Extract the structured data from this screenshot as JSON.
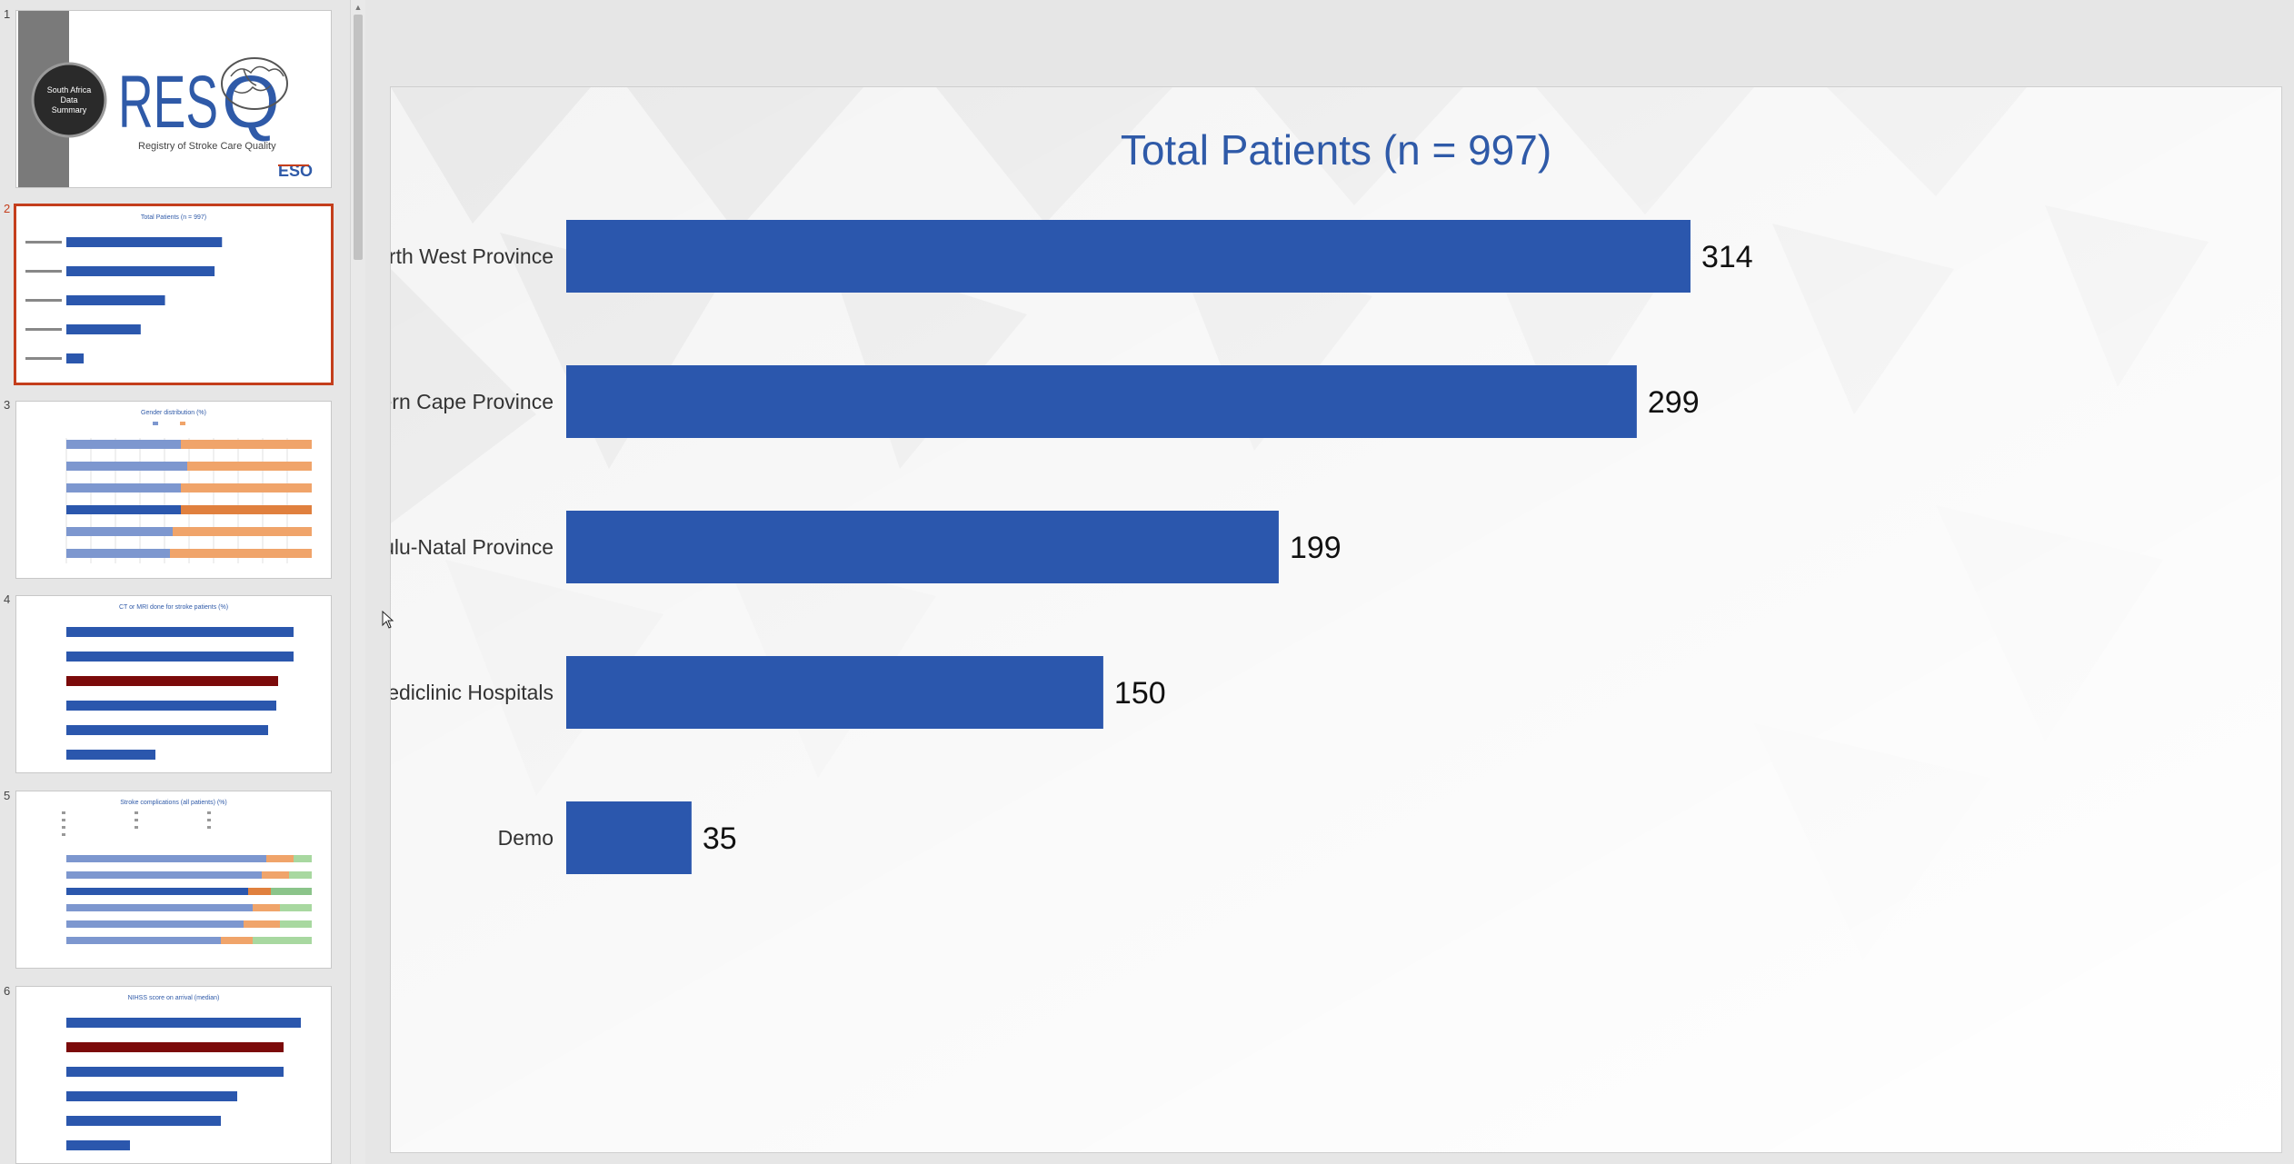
{
  "thumbnails": [
    {
      "number": "1",
      "title": "",
      "badge": "South Africa Data Summary",
      "logo": "RES",
      "logo_q": "Q",
      "subtitle": "Registry of Stroke Care Quality",
      "eso": "ESO"
    },
    {
      "number": "2",
      "title": "Total Patients (n = 997)"
    },
    {
      "number": "3",
      "title": "Gender distribution (%)"
    },
    {
      "number": "4",
      "title": "CT or MRI done for stroke patients (%)"
    },
    {
      "number": "5",
      "title": "Stroke complications (all patients) (%)"
    },
    {
      "number": "6",
      "title": "NIHSS score on arrival (median)"
    }
  ],
  "colors": {
    "bar": "#2b57ad",
    "title": "#2f5aa8",
    "accent": "#c43e1c",
    "highlight": "#7b0a0a",
    "female": "#f0a46a",
    "male": "#7d97cf"
  },
  "slide": {
    "title": "Total Patients (n = 997)"
  },
  "chart_data": {
    "type": "bar",
    "orientation": "horizontal",
    "title": "Total Patients (n = 997)",
    "categories": [
      "North West Province",
      "Eastern Cape Province",
      "KwaZulu-Natal Province",
      "Mediclinic Hospitals",
      "Demo"
    ],
    "values": [
      314,
      299,
      199,
      150,
      35
    ],
    "value_labels": [
      "314",
      "299",
      "199",
      "150",
      "35"
    ],
    "xlim": [
      0,
      330
    ],
    "grid": false,
    "legend": "none"
  }
}
